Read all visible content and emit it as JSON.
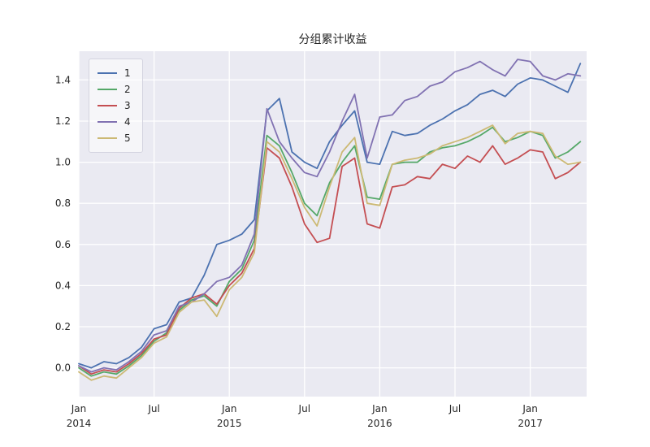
{
  "chart_data": {
    "type": "line",
    "title": "分组累计收益",
    "grid": true,
    "legend_position": "upper left",
    "plot_bg": "#EAEAF2",
    "grid_color": "#FFFFFF",
    "text_color": "#262626",
    "ylim": [
      -0.14,
      1.54
    ],
    "xlim_months": [
      0,
      40.5
    ],
    "yticks": [
      0.0,
      0.2,
      0.4,
      0.6,
      0.8,
      1.0,
      1.2,
      1.4
    ],
    "ytick_labels": [
      "0.0",
      "0.2",
      "0.4",
      "0.6",
      "0.8",
      "1.0",
      "1.2",
      "1.4"
    ],
    "xticks": [
      {
        "month_index": 0,
        "label": "Jan",
        "year": "2014"
      },
      {
        "month_index": 6,
        "label": "Jul",
        "year": ""
      },
      {
        "month_index": 12,
        "label": "Jan",
        "year": "2015"
      },
      {
        "month_index": 18,
        "label": "Jul",
        "year": ""
      },
      {
        "month_index": 24,
        "label": "Jan",
        "year": "2016"
      },
      {
        "month_index": 30,
        "label": "Jul",
        "year": ""
      },
      {
        "month_index": 36,
        "label": "Jan",
        "year": "2017"
      }
    ],
    "x_labels": [
      "2014-01",
      "2014-02",
      "2014-03",
      "2014-04",
      "2014-05",
      "2014-06",
      "2014-07",
      "2014-08",
      "2014-09",
      "2014-10",
      "2014-11",
      "2014-12",
      "2015-01",
      "2015-02",
      "2015-03",
      "2015-04",
      "2015-05",
      "2015-06",
      "2015-07",
      "2015-08",
      "2015-09",
      "2015-10",
      "2015-11",
      "2015-12",
      "2016-01",
      "2016-02",
      "2016-03",
      "2016-04",
      "2016-05",
      "2016-06",
      "2016-07",
      "2016-08",
      "2016-09",
      "2016-10",
      "2016-11",
      "2016-12",
      "2017-01",
      "2017-02",
      "2017-03",
      "2017-04",
      "2017-05"
    ],
    "series": [
      {
        "name": "1",
        "color": "#4C72B0",
        "values": [
          0.02,
          0.0,
          0.03,
          0.02,
          0.05,
          0.1,
          0.19,
          0.21,
          0.32,
          0.34,
          0.45,
          0.6,
          0.62,
          0.65,
          0.72,
          1.25,
          1.31,
          1.05,
          1.0,
          0.97,
          1.1,
          1.18,
          1.25,
          1.0,
          0.99,
          1.15,
          1.13,
          1.14,
          1.18,
          1.21,
          1.25,
          1.28,
          1.33,
          1.35,
          1.32,
          1.38,
          1.41,
          1.4,
          1.37,
          1.34,
          1.48
        ]
      },
      {
        "name": "2",
        "color": "#55A868",
        "values": [
          0.0,
          -0.04,
          -0.02,
          -0.03,
          0.01,
          0.06,
          0.13,
          0.17,
          0.28,
          0.33,
          0.35,
          0.3,
          0.42,
          0.48,
          0.62,
          1.13,
          1.08,
          0.95,
          0.8,
          0.74,
          0.9,
          1.0,
          1.08,
          0.83,
          0.82,
          0.99,
          1.0,
          1.0,
          1.05,
          1.07,
          1.08,
          1.1,
          1.13,
          1.17,
          1.1,
          1.12,
          1.15,
          1.13,
          1.02,
          1.05,
          1.1
        ]
      },
      {
        "name": "3",
        "color": "#C44E52",
        "values": [
          0.01,
          -0.03,
          -0.01,
          -0.02,
          0.02,
          0.07,
          0.14,
          0.16,
          0.29,
          0.34,
          0.36,
          0.31,
          0.4,
          0.46,
          0.58,
          1.07,
          1.02,
          0.88,
          0.7,
          0.61,
          0.63,
          0.98,
          1.02,
          0.7,
          0.68,
          0.88,
          0.89,
          0.93,
          0.92,
          0.99,
          0.97,
          1.03,
          1.0,
          1.08,
          0.99,
          1.02,
          1.06,
          1.05,
          0.92,
          0.95,
          1.0
        ]
      },
      {
        "name": "4",
        "color": "#8172B2",
        "values": [
          0.01,
          -0.02,
          0.0,
          -0.01,
          0.03,
          0.08,
          0.16,
          0.18,
          0.3,
          0.32,
          0.36,
          0.42,
          0.44,
          0.5,
          0.65,
          1.26,
          1.1,
          1.02,
          0.95,
          0.93,
          1.05,
          1.2,
          1.33,
          1.02,
          1.22,
          1.23,
          1.3,
          1.32,
          1.37,
          1.39,
          1.44,
          1.46,
          1.49,
          1.45,
          1.42,
          1.5,
          1.49,
          1.42,
          1.4,
          1.43,
          1.42
        ]
      },
      {
        "name": "5",
        "color": "#CCB974",
        "values": [
          -0.02,
          -0.06,
          -0.04,
          -0.05,
          0.0,
          0.05,
          0.12,
          0.15,
          0.27,
          0.32,
          0.33,
          0.25,
          0.38,
          0.44,
          0.56,
          1.1,
          1.05,
          0.92,
          0.78,
          0.69,
          0.88,
          1.05,
          1.12,
          0.8,
          0.79,
          0.99,
          1.01,
          1.02,
          1.04,
          1.08,
          1.1,
          1.12,
          1.15,
          1.18,
          1.09,
          1.14,
          1.15,
          1.14,
          1.03,
          0.99,
          1.0
        ]
      }
    ]
  }
}
